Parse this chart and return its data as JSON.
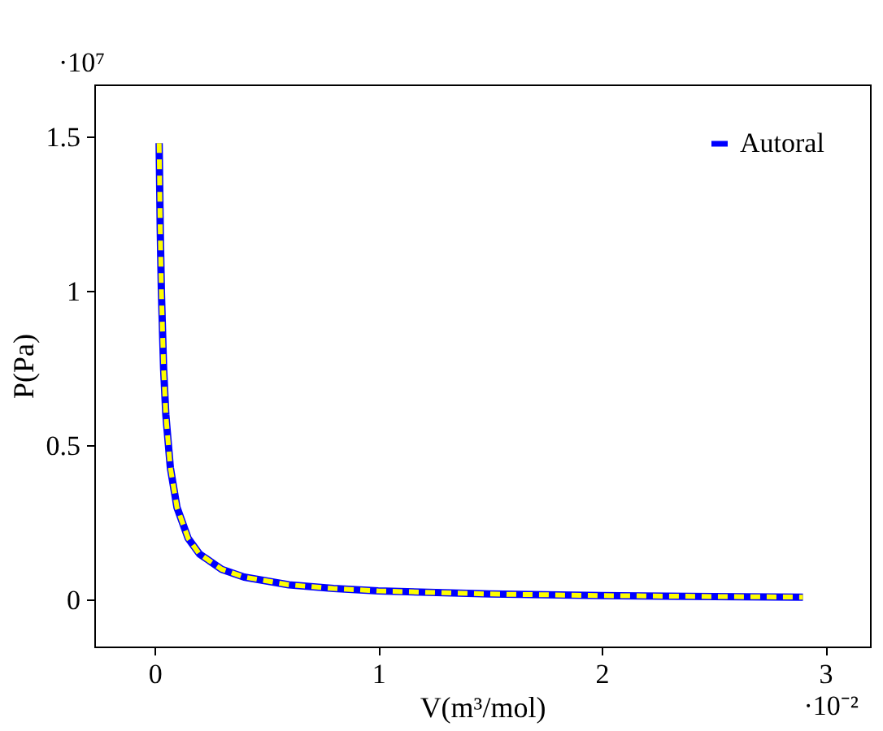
{
  "chart_data": {
    "type": "line",
    "xlabel": "V(m³/mol)",
    "ylabel": "P(Pa)",
    "annotations": [
      "·10⁷",
      "·10⁻²"
    ],
    "xlim": [
      -0.27,
      3.2
    ],
    "ylim": [
      -0.15,
      1.67
    ],
    "xticks": [
      0,
      1,
      2,
      3
    ],
    "yticks": [
      0,
      0.5,
      1,
      1.5
    ],
    "x": [
      0.02,
      0.025,
      0.03,
      0.04,
      0.05,
      0.07,
      0.1,
      0.15,
      0.2,
      0.3,
      0.4,
      0.6,
      0.8,
      1,
      1.5,
      2,
      2.5,
      2.9
    ],
    "series": [
      {
        "name": "Autoral",
        "color": "#0000ff",
        "line_style": "solid",
        "values": [
          1.48,
          1.2,
          1.0,
          0.75,
          0.6,
          0.43,
          0.3,
          0.2,
          0.15,
          0.1,
          0.075,
          0.05,
          0.038,
          0.03,
          0.02,
          0.015,
          0.012,
          0.01
        ]
      },
      {
        "color": "#ffff00",
        "line_style": "dashed",
        "values": [
          1.48,
          1.2,
          1.0,
          0.75,
          0.6,
          0.43,
          0.3,
          0.2,
          0.15,
          0.1,
          0.075,
          0.05,
          0.038,
          0.03,
          0.02,
          0.015,
          0.012,
          0.01
        ]
      }
    ],
    "grid": false,
    "legend": "top right",
    "marker": "none"
  }
}
